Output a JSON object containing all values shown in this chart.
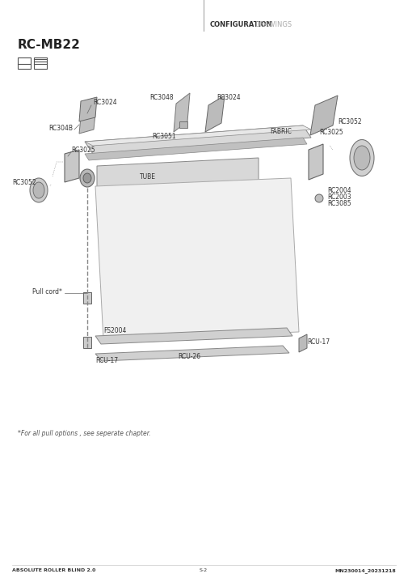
{
  "title": "RC-MB22",
  "header_bold": "CONFIGURATION",
  "header_light": "DRAWINGS",
  "footer_left": "ABSOLUTE ROLLER BLIND 2.0",
  "footer_center": "S-2",
  "footer_right": "MN230014_20231218",
  "footnote": "*For all pull options , see seperate chapter.",
  "bg_color": "#ffffff",
  "line_color": "#333333",
  "part_color": "#cccccc",
  "part_color2": "#aaaaaa",
  "part_color3": "#e0e0e0",
  "labels": {
    "RC3024_left": "RC3024",
    "RC3048": "RC3048",
    "RC3024_right": "RC3024",
    "RC3051": "RC3051",
    "FABRIC": "FABRIC",
    "RC3052_right_top": "RC3052",
    "RC3025_right": "RC3025",
    "RC3025_left": "RC3025",
    "RC3052_left": "RC3052",
    "RC3048b": "RC304B",
    "TUBE": "TUBE",
    "RC2004": "RC2004",
    "RC2003": "RC2003",
    "RC3085": "RC3085",
    "FS2004": "FS2004",
    "RCU17_right": "RCU-17",
    "RCU26": "RCU-26",
    "RCU17_left": "RCU-17",
    "Pull_cord": "Pull cord*"
  }
}
